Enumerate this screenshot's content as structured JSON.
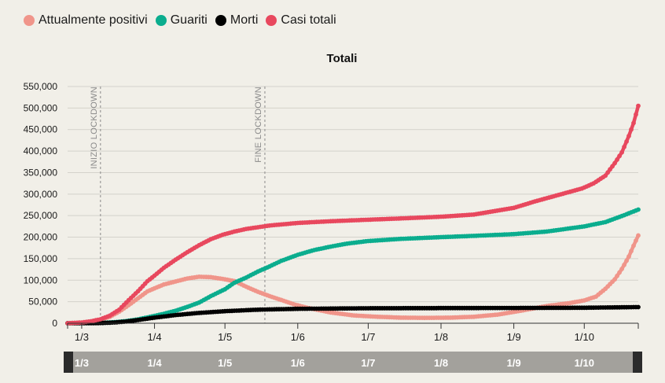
{
  "legend": [
    {
      "label": "Attualmente positivi",
      "color": "#f0958a",
      "series": 0
    },
    {
      "label": "Guariti",
      "color": "#0bad8e",
      "series": 1
    },
    {
      "label": "Morti",
      "color": "#000000",
      "series": 2
    },
    {
      "label": "Casi totali",
      "color": "#e8485e",
      "series": 3
    }
  ],
  "chart_data": {
    "type": "line",
    "title": "Totali",
    "xlabel": "",
    "ylabel": "",
    "x_tick_labels": [
      "1/3",
      "1/4",
      "1/5",
      "1/6",
      "1/7",
      "1/8",
      "1/9",
      "1/10"
    ],
    "y_tick_labels": [
      "0",
      "50,000",
      "100,000",
      "150,000",
      "200,000",
      "250,000",
      "300,000",
      "350,000",
      "400,000",
      "450,000",
      "500,000",
      "550,000"
    ],
    "ylim": [
      0,
      550000
    ],
    "xlim": [
      "2020-02-24",
      "2020-10-24"
    ],
    "grid": true,
    "legend_position": "top-left",
    "annotations": [
      {
        "date": "2020-03-09",
        "label": "INIZIO LOCKDOWN"
      },
      {
        "date": "2020-05-18",
        "label": "FINE LOCKDOWN"
      }
    ],
    "navigator_labels": [
      "1/3",
      "1/4",
      "1/5",
      "1/6",
      "1/7",
      "1/8",
      "1/9",
      "1/10"
    ],
    "series": [
      {
        "name": "Attualmente positivi",
        "color": "#f0958a",
        "points": [
          [
            "2020-02-24",
            0
          ],
          [
            "2020-03-01",
            1500
          ],
          [
            "2020-03-05",
            4000
          ],
          [
            "2020-03-09",
            8000
          ],
          [
            "2020-03-13",
            15000
          ],
          [
            "2020-03-17",
            27000
          ],
          [
            "2020-03-21",
            42000
          ],
          [
            "2020-03-25",
            58000
          ],
          [
            "2020-03-29",
            74000
          ],
          [
            "2020-04-01",
            81000
          ],
          [
            "2020-04-05",
            90000
          ],
          [
            "2020-04-10",
            97000
          ],
          [
            "2020-04-15",
            104000
          ],
          [
            "2020-04-20",
            108000
          ],
          [
            "2020-04-25",
            107000
          ],
          [
            "2020-04-30",
            103000
          ],
          [
            "2020-05-05",
            98000
          ],
          [
            "2020-05-10",
            85000
          ],
          [
            "2020-05-15",
            73000
          ],
          [
            "2020-05-20",
            63000
          ],
          [
            "2020-05-25",
            54000
          ],
          [
            "2020-05-31",
            43000
          ],
          [
            "2020-06-05",
            36000
          ],
          [
            "2020-06-15",
            25000
          ],
          [
            "2020-06-25",
            18000
          ],
          [
            "2020-07-05",
            15000
          ],
          [
            "2020-07-15",
            13000
          ],
          [
            "2020-07-25",
            12500
          ],
          [
            "2020-08-05",
            13000
          ],
          [
            "2020-08-15",
            15000
          ],
          [
            "2020-08-25",
            20000
          ],
          [
            "2020-09-05",
            30000
          ],
          [
            "2020-09-15",
            40000
          ],
          [
            "2020-09-25",
            47000
          ],
          [
            "2020-10-01",
            53000
          ],
          [
            "2020-10-06",
            62000
          ],
          [
            "2020-10-10",
            80000
          ],
          [
            "2020-10-14",
            102000
          ],
          [
            "2020-10-17",
            126000
          ],
          [
            "2020-10-20",
            155000
          ],
          [
            "2020-10-22",
            180000
          ],
          [
            "2020-10-24",
            204000
          ]
        ]
      },
      {
        "name": "Guariti",
        "color": "#0bad8e",
        "points": [
          [
            "2020-02-24",
            0
          ],
          [
            "2020-03-05",
            600
          ],
          [
            "2020-03-10",
            1000
          ],
          [
            "2020-03-15",
            2500
          ],
          [
            "2020-03-20",
            5000
          ],
          [
            "2020-03-25",
            9000
          ],
          [
            "2020-04-01",
            17000
          ],
          [
            "2020-04-05",
            22000
          ],
          [
            "2020-04-10",
            29000
          ],
          [
            "2020-04-15",
            38000
          ],
          [
            "2020-04-20",
            48000
          ],
          [
            "2020-04-25",
            63000
          ],
          [
            "2020-05-01",
            79000
          ],
          [
            "2020-05-05",
            94000
          ],
          [
            "2020-05-10",
            106000
          ],
          [
            "2020-05-15",
            120000
          ],
          [
            "2020-05-20",
            132000
          ],
          [
            "2020-05-25",
            145000
          ],
          [
            "2020-06-01",
            159000
          ],
          [
            "2020-06-08",
            170000
          ],
          [
            "2020-06-15",
            178000
          ],
          [
            "2020-06-22",
            185000
          ],
          [
            "2020-07-01",
            191000
          ],
          [
            "2020-07-15",
            196000
          ],
          [
            "2020-08-01",
            200000
          ],
          [
            "2020-08-15",
            203000
          ],
          [
            "2020-09-01",
            207000
          ],
          [
            "2020-09-15",
            213000
          ],
          [
            "2020-10-01",
            225000
          ],
          [
            "2020-10-10",
            235000
          ],
          [
            "2020-10-17",
            249000
          ],
          [
            "2020-10-24",
            264000
          ]
        ]
      },
      {
        "name": "Morti",
        "color": "#000000",
        "points": [
          [
            "2020-02-24",
            0
          ],
          [
            "2020-03-05",
            150
          ],
          [
            "2020-03-10",
            600
          ],
          [
            "2020-03-15",
            1800
          ],
          [
            "2020-03-20",
            4000
          ],
          [
            "2020-03-25",
            7500
          ],
          [
            "2020-04-01",
            13000
          ],
          [
            "2020-04-10",
            19000
          ],
          [
            "2020-04-20",
            24000
          ],
          [
            "2020-05-01",
            28000
          ],
          [
            "2020-05-15",
            31500
          ],
          [
            "2020-06-01",
            33500
          ],
          [
            "2020-07-01",
            34800
          ],
          [
            "2020-08-01",
            35200
          ],
          [
            "2020-09-01",
            35500
          ],
          [
            "2020-10-01",
            36000
          ],
          [
            "2020-10-24",
            37500
          ]
        ]
      },
      {
        "name": "Casi totali",
        "color": "#e8485e",
        "points": [
          [
            "2020-02-24",
            0
          ],
          [
            "2020-03-01",
            1700
          ],
          [
            "2020-03-05",
            4600
          ],
          [
            "2020-03-09",
            9200
          ],
          [
            "2020-03-13",
            17700
          ],
          [
            "2020-03-17",
            31500
          ],
          [
            "2020-03-21",
            53600
          ],
          [
            "2020-03-25",
            74400
          ],
          [
            "2020-03-29",
            97700
          ],
          [
            "2020-04-01",
            110600
          ],
          [
            "2020-04-05",
            128900
          ],
          [
            "2020-04-10",
            147600
          ],
          [
            "2020-04-15",
            165200
          ],
          [
            "2020-04-20",
            181200
          ],
          [
            "2020-04-25",
            195300
          ],
          [
            "2020-04-30",
            205500
          ],
          [
            "2020-05-05",
            213000
          ],
          [
            "2020-05-10",
            219000
          ],
          [
            "2020-05-15",
            223000
          ],
          [
            "2020-05-20",
            227000
          ],
          [
            "2020-06-01",
            233000
          ],
          [
            "2020-06-15",
            237000
          ],
          [
            "2020-07-01",
            240500
          ],
          [
            "2020-07-15",
            243500
          ],
          [
            "2020-08-01",
            247500
          ],
          [
            "2020-08-15",
            252500
          ],
          [
            "2020-09-01",
            268000
          ],
          [
            "2020-09-10",
            283000
          ],
          [
            "2020-09-20",
            298000
          ],
          [
            "2020-09-30",
            313000
          ],
          [
            "2020-10-05",
            325000
          ],
          [
            "2020-10-10",
            343000
          ],
          [
            "2020-10-14",
            372000
          ],
          [
            "2020-10-17",
            397000
          ],
          [
            "2020-10-20",
            435000
          ],
          [
            "2020-10-22",
            465000
          ],
          [
            "2020-10-24",
            505000
          ]
        ]
      }
    ]
  }
}
